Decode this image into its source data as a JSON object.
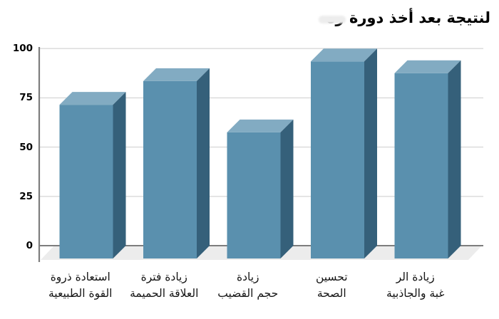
{
  "chart_data": {
    "type": "bar",
    "style": "3d-column",
    "title": "لنتيجة بعد أخذ دورة ره",
    "categories": [
      "استعادة ذروة\nالقوة الطبيعية",
      "زيادة فترة\nالعلاقة الحميمة",
      "زيادة\nحجم القضيب",
      "تحسين\nالصحة",
      "زيادة الر\nغبة والجاذبية"
    ],
    "values": [
      78,
      90,
      64,
      100,
      94
    ],
    "yticks": [
      0,
      25,
      50,
      75,
      100
    ],
    "ylim": [
      0,
      100
    ],
    "xlabel": "",
    "ylabel": "",
    "grid": true,
    "legend": false,
    "text_direction": "rtl",
    "colors": {
      "bar_front": "#5a90ae",
      "bar_top": "#82abc2",
      "bar_side": "#35607a",
      "floor": "#ececec",
      "axis": "#7d7d7d",
      "gridline": "#d9d9d9",
      "text": "#000000",
      "background": "#ffffff"
    }
  }
}
